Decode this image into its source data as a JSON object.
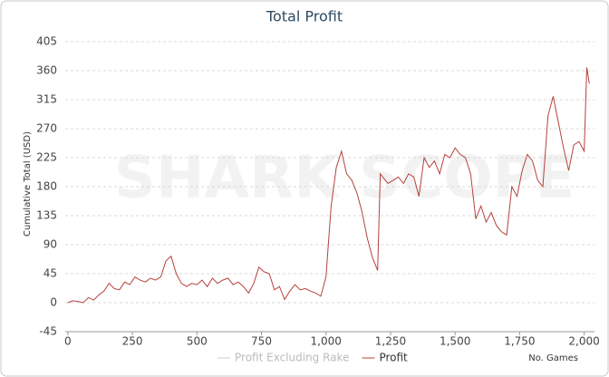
{
  "chart_data": {
    "type": "line",
    "title": "Total Profit",
    "y_label": "Cumulative Total (USD)",
    "x_label": "No. Games",
    "watermark": "SHARK SCOPE",
    "x": [
      0,
      20,
      40,
      60,
      80,
      100,
      120,
      140,
      160,
      180,
      200,
      220,
      240,
      260,
      280,
      300,
      320,
      340,
      360,
      380,
      400,
      420,
      440,
      460,
      480,
      500,
      520,
      540,
      560,
      580,
      600,
      620,
      640,
      660,
      680,
      700,
      720,
      740,
      760,
      780,
      800,
      820,
      840,
      860,
      880,
      900,
      920,
      940,
      960,
      980,
      1000,
      1020,
      1040,
      1060,
      1080,
      1100,
      1120,
      1140,
      1160,
      1180,
      1200,
      1210,
      1220,
      1240,
      1260,
      1280,
      1300,
      1320,
      1340,
      1360,
      1380,
      1400,
      1420,
      1440,
      1460,
      1480,
      1500,
      1520,
      1540,
      1560,
      1580,
      1600,
      1620,
      1640,
      1660,
      1680,
      1700,
      1720,
      1740,
      1760,
      1780,
      1800,
      1820,
      1840,
      1860,
      1880,
      1900,
      1920,
      1940,
      1960,
      1980,
      2000,
      2010,
      2020
    ],
    "series": [
      {
        "name": "Profit Excluding Rake",
        "color": "#cccccc",
        "visible": false,
        "values": [
          null,
          null,
          null,
          null,
          null,
          null,
          null,
          null,
          null,
          null,
          null,
          null,
          null,
          null,
          null,
          null,
          null,
          null,
          null,
          null,
          null,
          null,
          null,
          null,
          null,
          null,
          null,
          null,
          null,
          null,
          null,
          null,
          null,
          null,
          null,
          null,
          null,
          null,
          null,
          null,
          null,
          null,
          null,
          null,
          null,
          null,
          null,
          null,
          null,
          null,
          null,
          null,
          null,
          null,
          null,
          null,
          null,
          null,
          null,
          null,
          null,
          null,
          null,
          null,
          null,
          null,
          null,
          null,
          null,
          null,
          null,
          null,
          null,
          null,
          null,
          null,
          null,
          null,
          null,
          null,
          null,
          null,
          null,
          null,
          null,
          null,
          null,
          null,
          null,
          null,
          null,
          null,
          null,
          null,
          null,
          null,
          null,
          null,
          null,
          null,
          null,
          null,
          null,
          null
        ]
      },
      {
        "name": "Profit",
        "color": "#b5413c",
        "visible": true,
        "values": [
          0,
          3,
          2,
          0,
          8,
          4,
          12,
          18,
          30,
          22,
          20,
          32,
          28,
          40,
          35,
          32,
          38,
          35,
          40,
          65,
          72,
          45,
          30,
          25,
          30,
          28,
          35,
          25,
          38,
          30,
          35,
          38,
          28,
          32,
          25,
          15,
          30,
          55,
          48,
          45,
          20,
          25,
          5,
          18,
          28,
          20,
          22,
          18,
          15,
          10,
          40,
          150,
          210,
          235,
          200,
          190,
          170,
          140,
          100,
          70,
          50,
          200,
          195,
          185,
          190,
          195,
          185,
          200,
          195,
          165,
          225,
          210,
          220,
          200,
          230,
          225,
          240,
          230,
          225,
          200,
          130,
          150,
          125,
          140,
          120,
          110,
          105,
          180,
          165,
          205,
          230,
          220,
          190,
          180,
          290,
          320,
          280,
          240,
          205,
          245,
          250,
          235,
          365,
          340
        ]
      }
    ],
    "xlim": [
      -10,
      2040
    ],
    "ylim": [
      -45,
      405
    ],
    "xticks": [
      0,
      250,
      500,
      750,
      {
        "value": 1000,
        "label": "1,000"
      },
      {
        "value": 1250,
        "label": "1,250"
      },
      {
        "value": 1500,
        "label": "1,500"
      },
      {
        "value": 1750,
        "label": "1,750"
      },
      {
        "value": 2000,
        "label": "2,000"
      }
    ],
    "yticks": [
      -45,
      0,
      45,
      90,
      135,
      180,
      225,
      270,
      315,
      360,
      405
    ],
    "grid": true
  }
}
